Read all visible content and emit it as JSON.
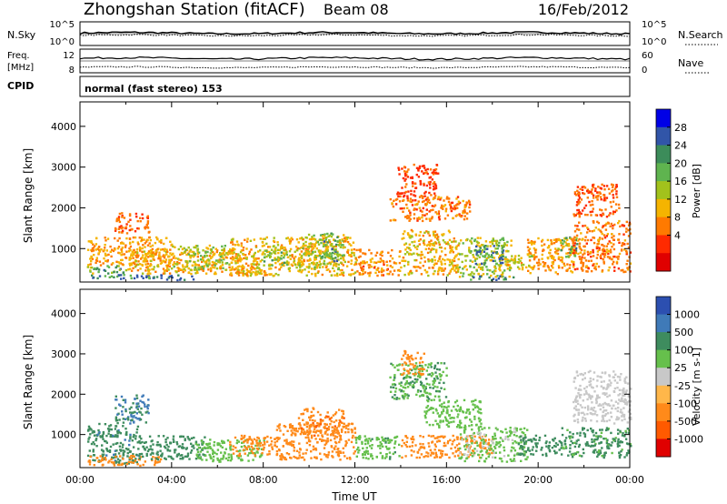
{
  "header": {
    "station": "Zhongshan Station (fitACF)",
    "beam": "Beam 08",
    "date": "16/Feb/2012",
    "cpid_label": "CPID",
    "cpid_text": "normal (fast stereo) 153"
  },
  "noise_panel": {
    "left_label": "N.Sky",
    "left_ticks": [
      "10^5",
      "10^0"
    ],
    "right_ticks": [
      "10^5",
      "10^0"
    ],
    "right_label": "N.Search",
    "n_sky_level": 3.4,
    "n_search_level": 2.8
  },
  "freq_panel": {
    "left_label_line1": "Freq.",
    "left_label_line2": "[MHz]",
    "left_ticks": [
      "12",
      "8"
    ],
    "right_ticks": [
      "60",
      "0"
    ],
    "right_label": "Nave",
    "freq_mhz": 10.4,
    "nave": 40
  },
  "chart_data": [
    {
      "type": "heatmap",
      "title": "",
      "quantity": "Power",
      "ylabel": "Slant Range [km]",
      "xlabel": "",
      "ylim": [
        180,
        4600
      ],
      "xlim": [
        0,
        24
      ],
      "ytick_labels": [
        "1000",
        "2000",
        "3000",
        "4000"
      ],
      "ytick_values": [
        1000,
        2000,
        3000,
        4000
      ],
      "colorbar": {
        "label": "Power [dB]",
        "tick_labels": [
          "28",
          "24",
          "20",
          "16",
          "12",
          "8",
          "4"
        ],
        "tick_values": [
          28,
          24,
          20,
          16,
          12,
          8,
          4
        ],
        "range": [
          0,
          32
        ],
        "colors": [
          "#0000e6",
          "#3155a8",
          "#3c8c5a",
          "#5fb44f",
          "#a2c21c",
          "#f5b400",
          "#ff7a00",
          "#ff2a00",
          "#e00000"
        ]
      },
      "regions": [
        {
          "t": [
            0.3,
            5.0
          ],
          "r": [
            250,
            380
          ],
          "v": 28
        },
        {
          "t": [
            0.3,
            2.0
          ],
          "r": [
            380,
            600
          ],
          "v": 22
        },
        {
          "t": [
            0.3,
            4.0
          ],
          "r": [
            600,
            1300
          ],
          "v": 12
        },
        {
          "t": [
            2.0,
            8.0
          ],
          "r": [
            400,
            1000
          ],
          "v": 13
        },
        {
          "t": [
            4.0,
            6.5
          ],
          "r": [
            500,
            1100
          ],
          "v": 18
        },
        {
          "t": [
            6.5,
            12.0
          ],
          "r": [
            350,
            1300
          ],
          "v": 14
        },
        {
          "t": [
            8.0,
            9.0
          ],
          "r": [
            600,
            1100
          ],
          "v": 20
        },
        {
          "t": [
            9.5,
            11.5
          ],
          "r": [
            500,
            1400
          ],
          "v": 17
        },
        {
          "t": [
            10.5,
            11.2
          ],
          "r": [
            650,
            1400
          ],
          "v": 22
        },
        {
          "t": [
            12.0,
            14.0
          ],
          "r": [
            350,
            1000
          ],
          "v": 11
        },
        {
          "t": [
            14.0,
            16.5
          ],
          "r": [
            350,
            1500
          ],
          "v": 14
        },
        {
          "t": [
            16.5,
            18.8
          ],
          "r": [
            300,
            1300
          ],
          "v": 18
        },
        {
          "t": [
            17.0,
            19.0
          ],
          "r": [
            250,
            350
          ],
          "v": 28
        },
        {
          "t": [
            17.2,
            18.6
          ],
          "r": [
            650,
            1100
          ],
          "v": 27
        },
        {
          "t": [
            18.5,
            19.8
          ],
          "r": [
            500,
            900
          ],
          "v": 16
        },
        {
          "t": [
            19.5,
            21.5
          ],
          "r": [
            400,
            1300
          ],
          "v": 12
        },
        {
          "t": [
            20.8,
            21.7
          ],
          "r": [
            800,
            1300
          ],
          "v": 22
        },
        {
          "t": [
            21.5,
            24.0
          ],
          "r": [
            450,
            1700
          ],
          "v": 10
        },
        {
          "t": [
            21.5,
            23.5
          ],
          "r": [
            1800,
            2600
          ],
          "v": 8
        },
        {
          "t": [
            13.5,
            17.0
          ],
          "r": [
            1700,
            2300
          ],
          "v": 10
        },
        {
          "t": [
            13.8,
            15.6
          ],
          "r": [
            2300,
            3100
          ],
          "v": 7
        },
        {
          "t": [
            1.5,
            3.0
          ],
          "r": [
            1400,
            1900
          ],
          "v": 9
        }
      ]
    },
    {
      "type": "heatmap",
      "title": "",
      "quantity": "Velocity",
      "ylabel": "Slant Range [km]",
      "xlabel": "Time UT",
      "ylim": [
        180,
        4600
      ],
      "xlim": [
        0,
        24
      ],
      "ytick_labels": [
        "1000",
        "2000",
        "3000",
        "4000"
      ],
      "ytick_values": [
        1000,
        2000,
        3000,
        4000
      ],
      "xtick_labels": [
        "00:00",
        "04:00",
        "08:00",
        "12:00",
        "16:00",
        "20:00",
        "00:00"
      ],
      "xtick_values": [
        0,
        4,
        8,
        12,
        16,
        20,
        24
      ],
      "colorbar": {
        "label": "Velocity [m s-1]",
        "tick_labels": [
          "1000",
          "500",
          "100",
          "25",
          "-25",
          "-100",
          "-500",
          "-1000"
        ],
        "tick_values": [
          1000,
          500,
          100,
          25,
          -25,
          -100,
          -500,
          -1000
        ],
        "colors": [
          "#2c4fb0",
          "#3f7ab8",
          "#3e8c5e",
          "#66c04c",
          "#c8c8c8",
          "#ffb74a",
          "#ff8a1a",
          "#ff5a00",
          "#e00000"
        ]
      },
      "regions": [
        {
          "t": [
            0.3,
            2.5
          ],
          "r": [
            300,
            1300
          ],
          "v": 400
        },
        {
          "t": [
            0.3,
            3.5
          ],
          "r": [
            250,
            500
          ],
          "v": -150
        },
        {
          "t": [
            2.5,
            5.5
          ],
          "r": [
            400,
            1000
          ],
          "v": 150
        },
        {
          "t": [
            5.0,
            8.0
          ],
          "r": [
            350,
            900
          ],
          "v": 60
        },
        {
          "t": [
            6.5,
            8.5
          ],
          "r": [
            500,
            1000
          ],
          "v": -200
        },
        {
          "t": [
            8.5,
            12.0
          ],
          "r": [
            400,
            1300
          ],
          "v": -300
        },
        {
          "t": [
            9.5,
            11.5
          ],
          "r": [
            1000,
            1700
          ],
          "v": -400
        },
        {
          "t": [
            12.0,
            14.0
          ],
          "r": [
            400,
            1000
          ],
          "v": 80
        },
        {
          "t": [
            14.0,
            18.0
          ],
          "r": [
            450,
            1000
          ],
          "v": -150
        },
        {
          "t": [
            15.0,
            17.5
          ],
          "r": [
            1200,
            1900
          ],
          "v": 60
        },
        {
          "t": [
            16.5,
            19.5
          ],
          "r": [
            350,
            1200
          ],
          "v": 30
        },
        {
          "t": [
            19.0,
            21.0
          ],
          "r": [
            500,
            1000
          ],
          "v": 150
        },
        {
          "t": [
            21.0,
            24.0
          ],
          "r": [
            450,
            1200
          ],
          "v": 120
        },
        {
          "t": [
            21.5,
            24.0
          ],
          "r": [
            1300,
            2600
          ],
          "v": 10
        },
        {
          "t": [
            13.5,
            16.0
          ],
          "r": [
            1900,
            2800
          ],
          "v": 90
        },
        {
          "t": [
            14.0,
            15.0
          ],
          "r": [
            2500,
            3100
          ],
          "v": -150
        },
        {
          "t": [
            1.5,
            3.0
          ],
          "r": [
            1300,
            2000
          ],
          "v": 500
        }
      ]
    }
  ]
}
